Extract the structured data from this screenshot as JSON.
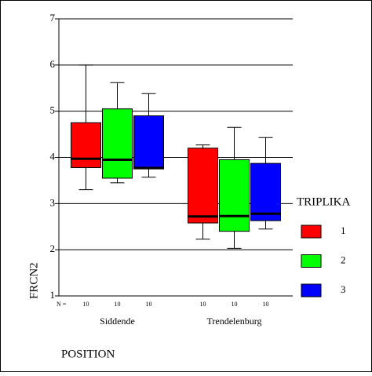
{
  "chart_data": {
    "type": "box",
    "ylabel": "FRCN2",
    "xlabel": "POSITION",
    "categories": [
      "Siddende",
      "Trendelenburg"
    ],
    "n_label": "N =",
    "legend_title": "TRIPLIKA",
    "ylim": [
      1,
      7
    ],
    "yticks": [
      1,
      2,
      3,
      4,
      5,
      6,
      7
    ],
    "grid": true,
    "series": [
      {
        "name": "1",
        "color": "#ff0000",
        "n": [
          10,
          10
        ],
        "low": [
          3.3,
          2.23
        ],
        "q1": [
          3.78,
          2.58
        ],
        "median": [
          3.97,
          2.72
        ],
        "q3": [
          4.75,
          4.2
        ],
        "high": [
          6.0,
          4.27
        ]
      },
      {
        "name": "2",
        "color": "#00ff00",
        "n": [
          10,
          10
        ],
        "low": [
          3.45,
          2.03
        ],
        "q1": [
          3.55,
          2.4
        ],
        "median": [
          3.95,
          2.73
        ],
        "q3": [
          5.05,
          3.95
        ],
        "high": [
          5.62,
          4.65
        ]
      },
      {
        "name": "3",
        "color": "#0000ff",
        "n": [
          10,
          10
        ],
        "low": [
          3.57,
          2.45
        ],
        "q1": [
          3.75,
          2.63
        ],
        "median": [
          3.77,
          2.78
        ],
        "q3": [
          4.9,
          3.87
        ],
        "high": [
          5.38,
          4.43
        ]
      }
    ]
  }
}
